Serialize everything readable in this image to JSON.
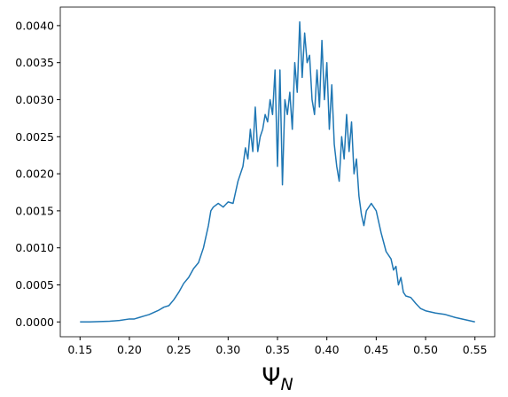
{
  "chart_data": {
    "type": "line",
    "xlabel": "Ψ",
    "xlabel_subscript": "N",
    "color": "#1f77b4",
    "x": [
      0.15,
      0.16,
      0.17,
      0.18,
      0.19,
      0.2,
      0.205,
      0.21,
      0.215,
      0.22,
      0.225,
      0.23,
      0.235,
      0.24,
      0.245,
      0.25,
      0.255,
      0.26,
      0.265,
      0.27,
      0.275,
      0.28,
      0.2825,
      0.285,
      0.29,
      0.295,
      0.3,
      0.305,
      0.31,
      0.315,
      0.3175,
      0.32,
      0.3225,
      0.325,
      0.3275,
      0.33,
      0.3325,
      0.335,
      0.3375,
      0.34,
      0.3425,
      0.345,
      0.3475,
      0.35,
      0.3525,
      0.355,
      0.3575,
      0.36,
      0.3625,
      0.365,
      0.3675,
      0.37,
      0.3725,
      0.375,
      0.3775,
      0.38,
      0.3825,
      0.385,
      0.3875,
      0.39,
      0.3925,
      0.395,
      0.3975,
      0.4,
      0.4025,
      0.405,
      0.4075,
      0.41,
      0.4125,
      0.415,
      0.4175,
      0.42,
      0.4225,
      0.425,
      0.4275,
      0.43,
      0.4325,
      0.435,
      0.4375,
      0.44,
      0.445,
      0.45,
      0.455,
      0.46,
      0.465,
      0.4675,
      0.47,
      0.4725,
      0.475,
      0.4775,
      0.48,
      0.485,
      0.49,
      0.495,
      0.5,
      0.51,
      0.52,
      0.53,
      0.54,
      0.55
    ],
    "values": [
      0,
      0,
      5e-06,
      1e-05,
      2e-05,
      4e-05,
      4e-05,
      6e-05,
      8e-05,
      0.0001,
      0.00013,
      0.00016,
      0.0002,
      0.00022,
      0.0003,
      0.0004,
      0.00052,
      0.0006,
      0.00072,
      0.0008,
      0.001,
      0.0013,
      0.0015,
      0.00155,
      0.0016,
      0.00155,
      0.00162,
      0.0016,
      0.0019,
      0.0021,
      0.00235,
      0.0022,
      0.0026,
      0.0023,
      0.0029,
      0.0023,
      0.0025,
      0.0026,
      0.0028,
      0.0027,
      0.003,
      0.0028,
      0.0034,
      0.0021,
      0.0034,
      0.00185,
      0.003,
      0.0028,
      0.0031,
      0.0026,
      0.0035,
      0.0031,
      0.00405,
      0.0033,
      0.0039,
      0.0035,
      0.0036,
      0.003,
      0.0028,
      0.0034,
      0.0029,
      0.0038,
      0.003,
      0.0035,
      0.0026,
      0.0032,
      0.0024,
      0.0021,
      0.0019,
      0.0025,
      0.0022,
      0.0028,
      0.0023,
      0.0027,
      0.002,
      0.0022,
      0.0017,
      0.00145,
      0.0013,
      0.0015,
      0.0016,
      0.0015,
      0.0012,
      0.00095,
      0.00085,
      0.0007,
      0.00075,
      0.0005,
      0.0006,
      0.0004,
      0.00035,
      0.00033,
      0.00025,
      0.00018,
      0.00015,
      0.00012,
      0.0001,
      6e-05,
      3e-05,
      0
    ],
    "xlim": [
      0.13,
      0.57
    ],
    "xticks": [
      0.15,
      {
        "value": 0.2,
        "label": "0.20"
      },
      0.25,
      {
        "value": 0.3,
        "label": "0.30"
      },
      0.35,
      {
        "value": 0.4,
        "label": "0.40"
      },
      0.45,
      {
        "value": 0.5,
        "label": "0.50"
      },
      0.55
    ],
    "ylim": [
      -0.0002,
      0.00425
    ],
    "yticks": [
      {
        "value": 0,
        "label": "0.0000"
      },
      {
        "value": 0.0005,
        "label": "0.0005"
      },
      {
        "value": 0.001,
        "label": "0.0010"
      },
      {
        "value": 0.0015,
        "label": "0.0015"
      },
      {
        "value": 0.002,
        "label": "0.0020"
      },
      {
        "value": 0.0025,
        "label": "0.0025"
      },
      {
        "value": 0.003,
        "label": "0.0030"
      },
      {
        "value": 0.0035,
        "label": "0.0035"
      },
      {
        "value": 0.004,
        "label": "0.0040"
      }
    ]
  }
}
